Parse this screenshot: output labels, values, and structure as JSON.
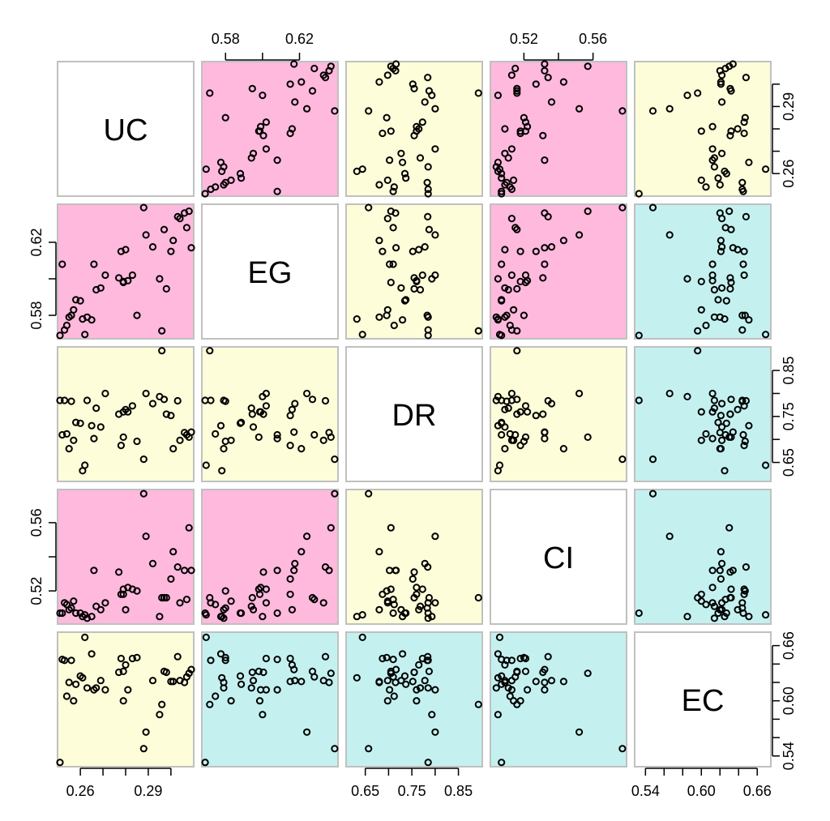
{
  "chart_data": {
    "type": "scatter-matrix",
    "variables": [
      "UC",
      "EG",
      "DR",
      "CI",
      "EC"
    ],
    "colors": {
      "positive": "#ffb9dd",
      "neutral": "#fdfdd9",
      "negative": "#c4f1f0",
      "diagonal": "#ffffff",
      "frame": "#c0c0c0",
      "point": "#000000"
    },
    "panel_color_class": [
      [
        "diag",
        "positive",
        "neutral",
        "positive",
        "neutral"
      ],
      [
        "positive",
        "diag",
        "neutral",
        "positive",
        "negative"
      ],
      [
        "neutral",
        "neutral",
        "diag",
        "neutral",
        "negative"
      ],
      [
        "positive",
        "positive",
        "neutral",
        "diag",
        "negative"
      ],
      [
        "neutral",
        "negative",
        "negative",
        "negative",
        "diag"
      ]
    ],
    "ranges": {
      "UC": [
        0.251,
        0.309
      ],
      "EG": [
        0.5685,
        0.6395
      ],
      "DR": [
        0.614,
        0.896
      ],
      "CI": [
        0.502,
        0.578
      ],
      "EC": [
        0.531,
        0.672
      ]
    },
    "axes": {
      "UC": {
        "ticks": [
          0.26,
          0.27,
          0.28,
          0.29,
          0.3
        ],
        "labels": [
          "0.26",
          "",
          "",
          "0.29",
          ""
        ]
      },
      "EG": {
        "ticks": [
          0.58,
          0.6,
          0.62
        ],
        "labels": [
          "0.58",
          "",
          "0.62"
        ]
      },
      "DR": {
        "ticks": [
          0.65,
          0.7,
          0.75,
          0.8,
          0.85
        ],
        "labels": [
          "0.65",
          "",
          "0.75",
          "",
          "0.85"
        ]
      },
      "CI": {
        "ticks": [
          0.52,
          0.54,
          0.56
        ],
        "labels": [
          "0.52",
          "",
          "0.56"
        ]
      },
      "EC": {
        "ticks": [
          0.54,
          0.56,
          0.58,
          0.6,
          0.62,
          0.64,
          0.66
        ],
        "labels": [
          "0.54",
          "",
          "",
          "0.60",
          "",
          "",
          "0.66"
        ]
      }
    },
    "observations": [
      {
        "UC": 0.251,
        "EG": 0.569,
        "DR": 0.785,
        "CI": 0.507,
        "EC": 0.533
      },
      {
        "UC": 0.252,
        "EG": 0.608,
        "DR": 0.71,
        "CI": 0.507,
        "EC": 0.645
      },
      {
        "UC": 0.253,
        "EG": 0.572,
        "DR": 0.785,
        "CI": 0.513,
        "EC": 0.644
      },
      {
        "UC": 0.254,
        "EG": 0.5745,
        "DR": 0.712,
        "CI": 0.512,
        "EC": 0.605
      },
      {
        "UC": 0.255,
        "EG": 0.579,
        "DR": 0.68,
        "CI": 0.509,
        "EC": 0.62
      },
      {
        "UC": 0.256,
        "EG": 0.58,
        "DR": 0.783,
        "CI": 0.51,
        "EC": 0.644
      },
      {
        "UC": 0.257,
        "EG": 0.583,
        "DR": 0.698,
        "CI": 0.514,
        "EC": 0.6
      },
      {
        "UC": 0.258,
        "EG": 0.5885,
        "DR": 0.737,
        "CI": 0.507,
        "EC": 0.618
      },
      {
        "UC": 0.26,
        "EG": 0.588,
        "DR": 0.735,
        "CI": 0.507,
        "EC": 0.627
      },
      {
        "UC": 0.261,
        "EG": 0.578,
        "DR": 0.632,
        "CI": 0.505,
        "EC": 0.625
      },
      {
        "UC": 0.262,
        "EG": 0.5695,
        "DR": 0.644,
        "CI": 0.506,
        "EC": 0.669
      },
      {
        "UC": 0.263,
        "EG": 0.579,
        "DR": 0.785,
        "CI": 0.504,
        "EC": 0.614
      },
      {
        "UC": 0.265,
        "EG": 0.5775,
        "DR": 0.73,
        "CI": 0.505,
        "EC": 0.651
      },
      {
        "UC": 0.266,
        "EG": 0.608,
        "DR": 0.702,
        "CI": 0.532,
        "EC": 0.612
      },
      {
        "UC": 0.267,
        "EG": 0.594,
        "DR": 0.768,
        "CI": 0.511,
        "EC": 0.614
      },
      {
        "UC": 0.269,
        "EG": 0.595,
        "DR": 0.727,
        "CI": 0.509,
        "EC": 0.622
      },
      {
        "UC": 0.271,
        "EG": 0.602,
        "DR": 0.8,
        "CI": 0.513,
        "EC": 0.612
      },
      {
        "UC": 0.277,
        "EG": 0.6005,
        "DR": 0.755,
        "CI": 0.531,
        "EC": 0.631
      },
      {
        "UC": 0.278,
        "EG": 0.615,
        "DR": 0.687,
        "CI": 0.518,
        "EC": 0.646
      },
      {
        "UC": 0.279,
        "EG": 0.598,
        "DR": 0.705,
        "CI": 0.521,
        "EC": 0.632
      },
      {
        "UC": 0.279,
        "EG": 0.5985,
        "DR": 0.76,
        "CI": 0.518,
        "EC": 0.6
      },
      {
        "UC": 0.28,
        "EG": 0.616,
        "DR": 0.765,
        "CI": 0.509,
        "EC": 0.639
      },
      {
        "UC": 0.281,
        "EG": 0.599,
        "DR": 0.76,
        "CI": 0.522,
        "EC": 0.612
      },
      {
        "UC": 0.283,
        "EG": 0.602,
        "DR": 0.773,
        "CI": 0.521,
        "EC": 0.646
      },
      {
        "UC": 0.285,
        "EG": 0.58,
        "DR": 0.696,
        "CI": 0.52,
        "EC": 0.647
      },
      {
        "UC": 0.288,
        "EG": 0.639,
        "DR": 0.657,
        "CI": 0.577,
        "EC": 0.548
      },
      {
        "UC": 0.289,
        "EG": 0.624,
        "DR": 0.8,
        "CI": 0.552,
        "EC": 0.566
      },
      {
        "UC": 0.292,
        "EG": 0.6175,
        "DR": 0.778,
        "CI": 0.536,
        "EC": 0.622
      },
      {
        "UC": 0.295,
        "EG": 0.6,
        "DR": 0.793,
        "CI": 0.505,
        "EC": 0.585
      },
      {
        "UC": 0.296,
        "EG": 0.5715,
        "DR": 0.893,
        "CI": 0.516,
        "EC": 0.596
      },
      {
        "UC": 0.297,
        "EG": 0.627,
        "DR": 0.787,
        "CI": 0.516,
        "EC": 0.632
      },
      {
        "UC": 0.298,
        "EG": 0.5945,
        "DR": 0.755,
        "CI": 0.516,
        "EC": 0.631
      },
      {
        "UC": 0.3,
        "EG": 0.615,
        "DR": 0.752,
        "CI": 0.527,
        "EC": 0.621
      },
      {
        "UC": 0.301,
        "EG": 0.621,
        "DR": 0.68,
        "CI": 0.543,
        "EC": 0.621
      },
      {
        "UC": 0.303,
        "EG": 0.634,
        "DR": 0.784,
        "CI": 0.534,
        "EC": 0.648
      },
      {
        "UC": 0.304,
        "EG": 0.633,
        "DR": 0.698,
        "CI": 0.513,
        "EC": 0.622
      },
      {
        "UC": 0.306,
        "EG": 0.636,
        "DR": 0.715,
        "CI": 0.532,
        "EC": 0.62
      },
      {
        "UC": 0.307,
        "EG": 0.628,
        "DR": 0.71,
        "CI": 0.515,
        "EC": 0.626
      },
      {
        "UC": 0.308,
        "EG": 0.637,
        "DR": 0.705,
        "CI": 0.557,
        "EC": 0.63
      },
      {
        "UC": 0.309,
        "EG": 0.617,
        "DR": 0.716,
        "CI": 0.532,
        "EC": 0.634
      }
    ]
  }
}
